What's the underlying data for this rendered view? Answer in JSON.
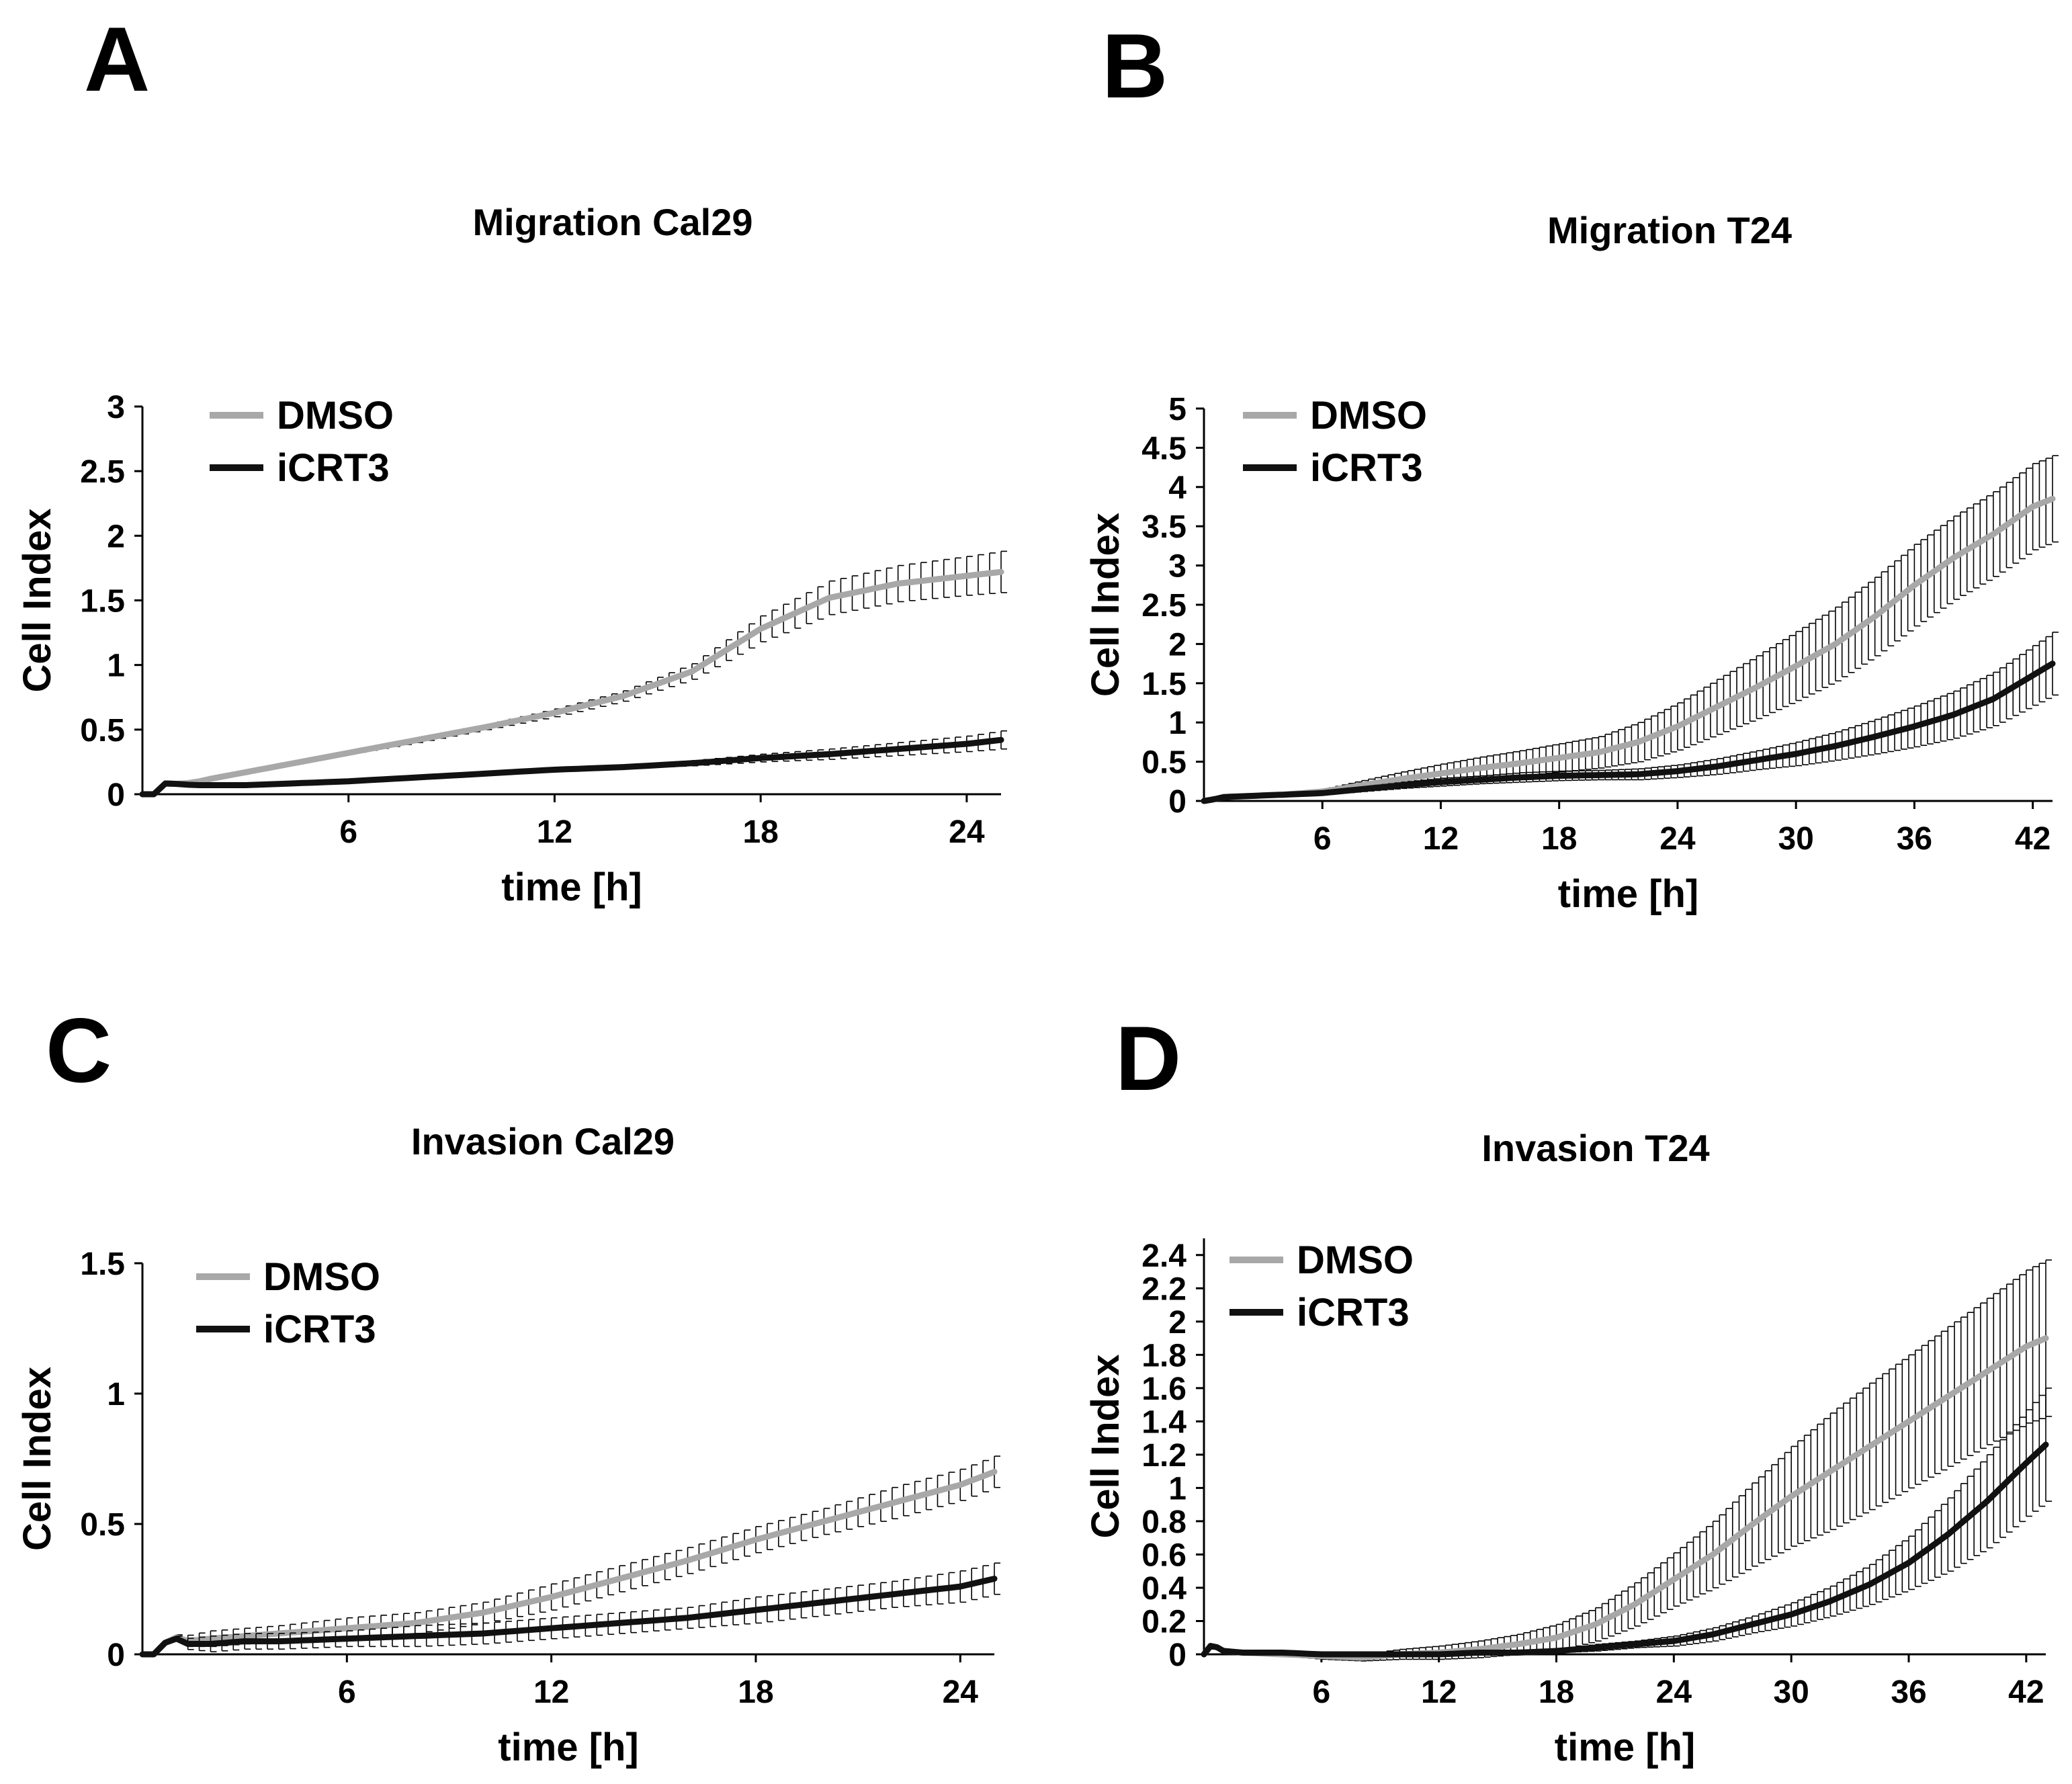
{
  "figure": {
    "background": "#ffffff",
    "series_colors": {
      "DMSO": "#a8a8a8",
      "iCRT3": "#111111",
      "error_bar": "#000000"
    }
  },
  "chart_data": [
    {
      "panel": "A",
      "type": "line",
      "title": "Migration Cal29",
      "xlabel": "time [h]",
      "ylabel": "Cell Index",
      "xlim": [
        0,
        25
      ],
      "ylim": [
        0,
        3
      ],
      "xticks": [
        6,
        12,
        18,
        24
      ],
      "yticks": [
        0,
        0.5,
        1,
        1.5,
        2,
        2.5,
        3
      ],
      "ytick_labels": [
        "0",
        "0.5",
        "1",
        "1.5",
        "2",
        "2.5",
        "3"
      ],
      "legend": [
        "DMSO",
        "iCRT3"
      ],
      "legend_position": "top-left",
      "x": [
        0,
        0.5,
        0.7,
        1.0,
        1.5,
        2,
        3,
        4,
        6,
        8,
        10,
        12,
        14,
        16,
        18,
        20,
        22,
        24,
        25
      ],
      "series": [
        {
          "name": "DMSO",
          "values": [
            0,
            0,
            0.1,
            0.08,
            0.09,
            0.12,
            0.17,
            0.22,
            0.32,
            0.42,
            0.52,
            0.63,
            0.76,
            0.95,
            1.28,
            1.52,
            1.63,
            1.69,
            1.72
          ],
          "errors": [
            0,
            0,
            0,
            0,
            0,
            0,
            0,
            0,
            0.01,
            0.02,
            0.02,
            0.03,
            0.04,
            0.06,
            0.1,
            0.13,
            0.14,
            0.15,
            0.16
          ]
        },
        {
          "name": "iCRT3",
          "values": [
            0,
            0,
            0.1,
            0.08,
            0.07,
            0.07,
            0.07,
            0.08,
            0.1,
            0.13,
            0.16,
            0.19,
            0.21,
            0.24,
            0.28,
            0.31,
            0.35,
            0.39,
            0.42
          ],
          "errors": [
            0,
            0,
            0,
            0,
            0,
            0,
            0,
            0,
            0,
            0,
            0.01,
            0.01,
            0.01,
            0.02,
            0.03,
            0.04,
            0.05,
            0.06,
            0.07
          ]
        }
      ]
    },
    {
      "panel": "B",
      "type": "line",
      "title": "Migration T24",
      "xlabel": "time [h]",
      "ylabel": "Cell Index",
      "xlim": [
        0,
        43
      ],
      "ylim": [
        0,
        5
      ],
      "xticks": [
        6,
        12,
        18,
        24,
        30,
        36,
        42
      ],
      "yticks": [
        0,
        0.5,
        1,
        1.5,
        2,
        2.5,
        3,
        3.5,
        4,
        4.5,
        5
      ],
      "ytick_labels": [
        "0",
        "0.5",
        "1",
        "1.5",
        "2",
        "2.5",
        "3",
        "3.5",
        "4",
        "4.5",
        "5"
      ],
      "legend": [
        "DMSO",
        "iCRT3"
      ],
      "legend_position": "top-left",
      "x": [
        0,
        0.5,
        1,
        2,
        4,
        6,
        8,
        10,
        12,
        14,
        16,
        18,
        20,
        22,
        24,
        26,
        28,
        30,
        32,
        34,
        36,
        38,
        40,
        42,
        43
      ],
      "series": [
        {
          "name": "DMSO",
          "values": [
            0,
            0.02,
            0.05,
            0.06,
            0.08,
            0.12,
            0.2,
            0.28,
            0.35,
            0.42,
            0.48,
            0.55,
            0.62,
            0.75,
            0.95,
            1.2,
            1.45,
            1.72,
            2.0,
            2.35,
            2.75,
            3.1,
            3.4,
            3.75,
            3.85
          ],
          "errors": [
            0,
            0,
            0,
            0.01,
            0.02,
            0.03,
            0.06,
            0.09,
            0.12,
            0.14,
            0.16,
            0.18,
            0.2,
            0.25,
            0.3,
            0.35,
            0.4,
            0.44,
            0.47,
            0.5,
            0.52,
            0.53,
            0.54,
            0.55,
            0.55
          ]
        },
        {
          "name": "iCRT3",
          "values": [
            0,
            0.02,
            0.05,
            0.06,
            0.08,
            0.1,
            0.15,
            0.2,
            0.24,
            0.27,
            0.3,
            0.32,
            0.33,
            0.34,
            0.38,
            0.44,
            0.52,
            0.6,
            0.7,
            0.82,
            0.95,
            1.1,
            1.3,
            1.6,
            1.75
          ],
          "errors": [
            0,
            0,
            0,
            0.01,
            0.01,
            0.02,
            0.03,
            0.04,
            0.05,
            0.05,
            0.06,
            0.06,
            0.06,
            0.07,
            0.08,
            0.1,
            0.12,
            0.15,
            0.18,
            0.22,
            0.26,
            0.3,
            0.34,
            0.38,
            0.4
          ]
        }
      ]
    },
    {
      "panel": "C",
      "type": "line",
      "title": "Invasion Cal29",
      "xlabel": "time [h]",
      "ylabel": "Cell Index",
      "xlim": [
        0,
        25
      ],
      "ylim": [
        0,
        1.5
      ],
      "xticks": [
        6,
        12,
        18,
        24
      ],
      "yticks": [
        0,
        0.5,
        1,
        1.5
      ],
      "ytick_labels": [
        "0",
        "0.5",
        "1",
        "1.5"
      ],
      "legend": [
        "DMSO",
        "iCRT3"
      ],
      "legend_position": "top-left",
      "x": [
        0,
        0.5,
        0.8,
        1.2,
        2,
        3,
        4,
        6,
        8,
        10,
        12,
        14,
        16,
        18,
        20,
        22,
        24,
        25
      ],
      "series": [
        {
          "name": "DMSO",
          "values": [
            0,
            0,
            0.08,
            0.05,
            0.06,
            0.07,
            0.08,
            0.1,
            0.12,
            0.16,
            0.22,
            0.29,
            0.36,
            0.44,
            0.51,
            0.58,
            0.65,
            0.7
          ],
          "errors": [
            0,
            0,
            0,
            0.02,
            0.03,
            0.03,
            0.03,
            0.04,
            0.04,
            0.04,
            0.05,
            0.05,
            0.05,
            0.05,
            0.05,
            0.06,
            0.06,
            0.06
          ]
        },
        {
          "name": "iCRT3",
          "values": [
            0,
            0,
            0.08,
            0.04,
            0.04,
            0.05,
            0.05,
            0.06,
            0.07,
            0.08,
            0.1,
            0.12,
            0.14,
            0.17,
            0.2,
            0.23,
            0.26,
            0.29
          ],
          "errors": [
            0,
            0,
            0,
            0.02,
            0.03,
            0.03,
            0.03,
            0.03,
            0.04,
            0.04,
            0.04,
            0.04,
            0.04,
            0.05,
            0.05,
            0.05,
            0.06,
            0.06
          ]
        }
      ]
    },
    {
      "panel": "D",
      "type": "line",
      "title": "Invasion T24",
      "xlabel": "time [h]",
      "ylabel": "Cell Index",
      "xlim": [
        0,
        43
      ],
      "ylim": [
        0,
        2.5
      ],
      "xticks": [
        6,
        12,
        18,
        24,
        30,
        36,
        42
      ],
      "yticks": [
        0,
        0.2,
        0.4,
        0.6,
        0.8,
        1,
        1.2,
        1.4,
        1.6,
        1.8,
        2,
        2.2,
        2.4
      ],
      "ytick_labels": [
        "0",
        "0.2",
        "0.4",
        "0.6",
        "0.8",
        "1",
        "1.2",
        "1.4",
        "1.6",
        "1.8",
        "2",
        "2.2",
        "2.4"
      ],
      "legend": [
        "DMSO",
        "iCRT3"
      ],
      "legend_position": "top-left",
      "x": [
        0,
        0.4,
        0.7,
        1,
        2,
        4,
        6,
        8,
        10,
        12,
        14,
        16,
        18,
        20,
        22,
        24,
        26,
        28,
        30,
        32,
        34,
        36,
        38,
        40,
        42,
        43
      ],
      "series": [
        {
          "name": "DMSO",
          "values": [
            0,
            0.06,
            0.04,
            0.02,
            0.01,
            0.0,
            -0.01,
            -0.02,
            0.0,
            0.01,
            0.03,
            0.06,
            0.1,
            0.18,
            0.3,
            0.45,
            0.6,
            0.78,
            0.95,
            1.1,
            1.25,
            1.4,
            1.55,
            1.7,
            1.85,
            1.9
          ],
          "errors": [
            0,
            0,
            0,
            0.01,
            0.01,
            0.01,
            0.02,
            0.02,
            0.03,
            0.04,
            0.05,
            0.06,
            0.08,
            0.1,
            0.13,
            0.16,
            0.2,
            0.25,
            0.3,
            0.35,
            0.38,
            0.4,
            0.42,
            0.44,
            0.46,
            0.47
          ]
        },
        {
          "name": "iCRT3",
          "values": [
            0,
            0.06,
            0.04,
            0.02,
            0.01,
            0.01,
            0.0,
            0.0,
            0.0,
            0.0,
            0.01,
            0.01,
            0.02,
            0.04,
            0.06,
            0.08,
            0.12,
            0.18,
            0.24,
            0.32,
            0.42,
            0.55,
            0.72,
            0.92,
            1.15,
            1.26
          ],
          "errors": [
            0,
            0,
            0,
            0,
            0,
            0,
            0,
            0,
            0,
            0.01,
            0.01,
            0.01,
            0.01,
            0.02,
            0.02,
            0.03,
            0.04,
            0.05,
            0.07,
            0.09,
            0.12,
            0.16,
            0.22,
            0.28,
            0.32,
            0.34
          ]
        }
      ]
    }
  ]
}
